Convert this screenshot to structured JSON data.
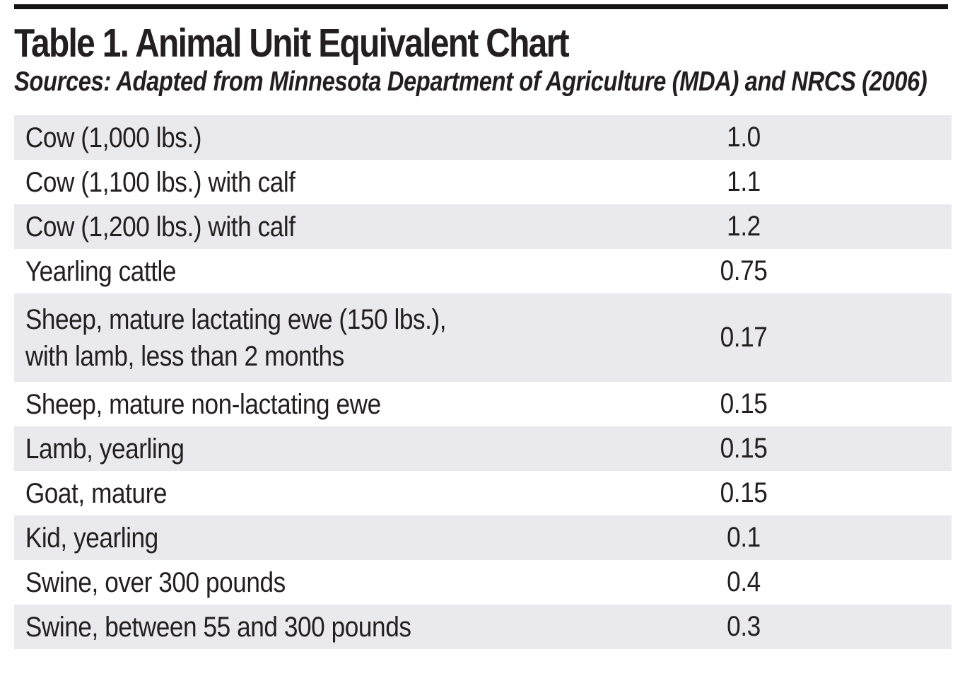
{
  "page": {
    "title": "Table 1. Animal Unit Equivalent Chart",
    "source_note": "Sources: Adapted from Minnesota Department of Agriculture (MDA) and NRCS (2006)"
  },
  "colors": {
    "row_shade": "#e9e9ee",
    "text": "#231f20",
    "top_rule": "#171213",
    "background": "#ffffff"
  },
  "table": {
    "rows": [
      {
        "label": "Cow (1,000 lbs.)",
        "value": "1.0"
      },
      {
        "label": "Cow (1,100 lbs.) with calf",
        "value": "1.1"
      },
      {
        "label": "Cow (1,200 lbs.) with calf",
        "value": "1.2"
      },
      {
        "label": "Yearling cattle",
        "value": "0.75"
      },
      {
        "label": "Sheep, mature lactating ewe (150 lbs.),\nwith lamb, less than 2 months",
        "value": "0.17"
      },
      {
        "label": "Sheep, mature non-lactating ewe",
        "value": "0.15"
      },
      {
        "label": "Lamb, yearling",
        "value": "0.15"
      },
      {
        "label": "Goat, mature",
        "value": "0.15"
      },
      {
        "label": "Kid, yearling",
        "value": "0.1"
      },
      {
        "label": "Swine, over 300 pounds",
        "value": "0.4"
      },
      {
        "label": "Swine, between 55 and 300 pounds",
        "value": "0.3"
      }
    ]
  },
  "chart_data": {
    "type": "table",
    "title": "Table 1. Animal Unit Equivalent Chart",
    "source_note": "Sources: Adapted from Minnesota Department of Agriculture (MDA) and NRCS (2006)",
    "categories": [
      "Cow (1,000 lbs.)",
      "Cow (1,100 lbs.) with calf",
      "Cow (1,200 lbs.) with calf",
      "Yearling cattle",
      "Sheep, mature lactating ewe (150 lbs.), with lamb, less than 2 months",
      "Sheep, mature non-lactating ewe",
      "Lamb, yearling",
      "Goat, mature",
      "Kid, yearling",
      "Swine, over 300 pounds",
      "Swine, between 55 and 300 pounds"
    ],
    "values": [
      1.0,
      1.1,
      1.2,
      0.75,
      0.17,
      0.15,
      0.15,
      0.15,
      0.1,
      0.4,
      0.3
    ],
    "layout_hints": {
      "striped_rows": true,
      "stripe_on_odd_rows_1_indexed": true,
      "value_column_alignment": "center",
      "gridlines": false
    }
  }
}
